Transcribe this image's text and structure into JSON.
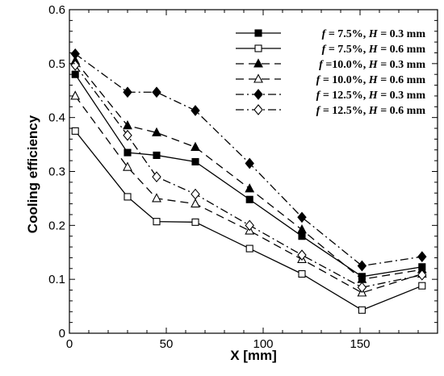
{
  "chart_data": {
    "type": "line",
    "xlabel": "X [mm]",
    "ylabel": "Cooling efficiency",
    "xlim": [
      0,
      190
    ],
    "ylim": [
      0,
      0.6
    ],
    "xticks": [
      "0",
      "50",
      "100",
      "150"
    ],
    "yticks": [
      "0",
      "0.1",
      "0.2",
      "0.3",
      "0.4",
      "0.5",
      "0.6"
    ],
    "x": [
      3,
      30,
      45,
      65,
      93,
      120,
      151,
      182
    ],
    "legend_position": "top-right",
    "grid": false,
    "series": [
      {
        "name": "f = 7.5%, H = 0.3 mm",
        "name_parts": [
          "f",
          " = 7.5%, ",
          "H",
          " = 0.3 mm"
        ],
        "marker": "square-filled",
        "dash": "solid",
        "values": [
          0.48,
          0.335,
          0.33,
          0.318,
          0.248,
          0.18,
          0.105,
          0.123
        ]
      },
      {
        "name": "f = 7.5%, H = 0.6 mm",
        "name_parts": [
          "f",
          " = 7.5%, ",
          "H",
          " = 0.6 mm"
        ],
        "marker": "square-open",
        "dash": "solid",
        "values": [
          0.375,
          0.253,
          0.207,
          0.206,
          0.157,
          0.11,
          0.043,
          0.088
        ]
      },
      {
        "name": "f =10.0%, H = 0.3 mm",
        "name_parts": [
          "f",
          " =10.0%, ",
          "H",
          " = 0.3 mm"
        ],
        "marker": "triangle-filled",
        "dash": "dashed",
        "values": [
          0.505,
          0.385,
          0.372,
          0.345,
          0.268,
          0.192,
          0.1,
          0.118
        ]
      },
      {
        "name": "f = 10.0%, H = 0.6 mm",
        "name_parts": [
          "f",
          " = 10.0%, ",
          "H",
          " = 0.6 mm"
        ],
        "marker": "triangle-open",
        "dash": "dashed",
        "values": [
          0.44,
          0.308,
          0.25,
          0.24,
          0.19,
          0.137,
          0.075,
          0.11
        ]
      },
      {
        "name": "f = 12.5%, H = 0.3 mm",
        "name_parts": [
          "f",
          " = 12.5%, ",
          "H",
          " = 0.3 mm"
        ],
        "marker": "diamond-filled",
        "dash": "dashdot",
        "values": [
          0.518,
          0.447,
          0.447,
          0.413,
          0.315,
          0.215,
          0.125,
          0.142
        ]
      },
      {
        "name": "f = 12.5%, H = 0.6 mm",
        "name_parts": [
          "f",
          " = 12.5%, ",
          "H",
          " = 0.6 mm"
        ],
        "marker": "diamond-open",
        "dash": "dashdot",
        "values": [
          0.497,
          0.367,
          0.29,
          0.258,
          0.2,
          0.145,
          0.085,
          0.108
        ]
      }
    ]
  }
}
